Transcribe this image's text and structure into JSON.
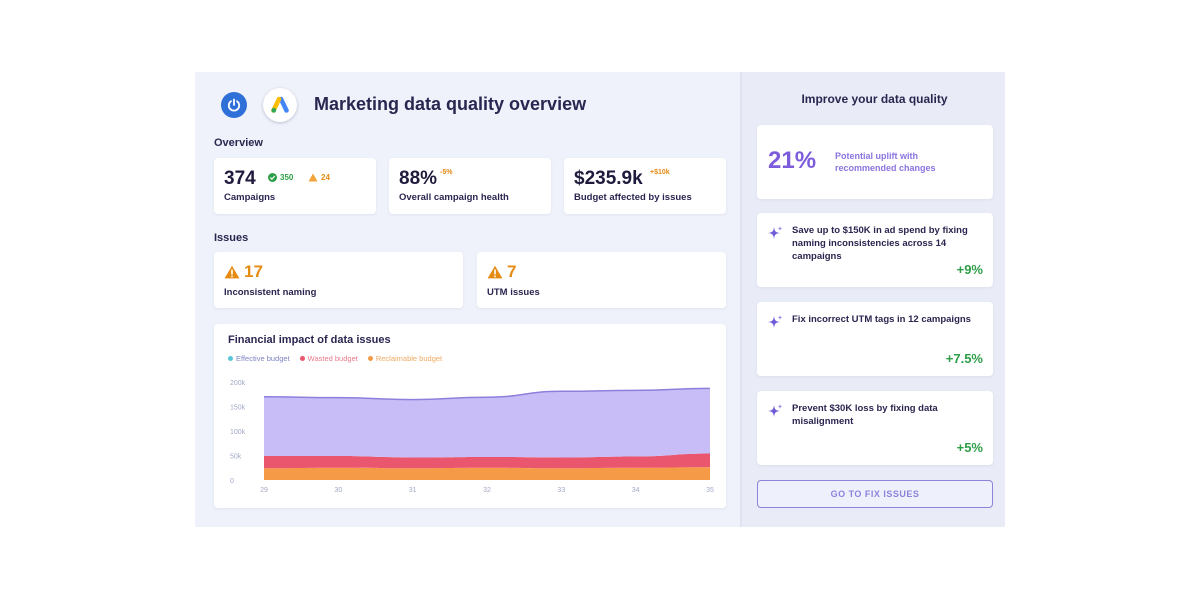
{
  "header": {
    "title": "Marketing data quality overview",
    "app_icon": "power-icon",
    "ads_icon": "google-ads-icon"
  },
  "overview": {
    "label": "Overview",
    "campaigns": {
      "value": "374",
      "ok_count": "350",
      "warn_count": "24",
      "label": "Campaigns"
    },
    "health": {
      "value": "88%",
      "delta": "-5%",
      "label": "Overall campaign health"
    },
    "budget": {
      "value": "$235.9k",
      "delta": "+$10k",
      "label": "Budget affected by issues"
    }
  },
  "issues": {
    "label": "Issues",
    "naming": {
      "value": "17",
      "label": "Inconsistent naming"
    },
    "utm": {
      "value": "7",
      "label": "UTM issues"
    }
  },
  "colors": {
    "accent": "#7c5cdb",
    "effective": "#c9bdf7",
    "wasted": "#e9566e",
    "reclaimable": "#f59a46",
    "positive": "#2e9e48",
    "warning": "#e58a12"
  },
  "chart_data": {
    "type": "area",
    "title": "Financial impact of data issues",
    "stacked": true,
    "x": [
      "29",
      "30",
      "31",
      "32",
      "33",
      "34",
      "35"
    ],
    "y_ticks": [
      "200k",
      "150k",
      "100k",
      "50k",
      "0"
    ],
    "ylim": [
      0,
      200000
    ],
    "grid": false,
    "legend_position": "top-left",
    "series": [
      {
        "name": "Reclaimable budget",
        "color": "#f59a46",
        "values": [
          24000,
          25000,
          24000,
          25000,
          24000,
          25000,
          26000
        ]
      },
      {
        "name": "Wasted budget",
        "color": "#e9566e",
        "values": [
          25000,
          24000,
          22000,
          22000,
          22000,
          23000,
          28000
        ]
      },
      {
        "name": "Effective budget",
        "color": "#c9bdf7",
        "values": [
          121000,
          119000,
          118000,
          122000,
          135000,
          135000,
          133000
        ]
      }
    ]
  },
  "sidebar": {
    "title": "Improve your data quality",
    "uplift": {
      "value": "21%",
      "text": "Potential uplift with recommended changes"
    },
    "recommendations": [
      {
        "text": "Save up to $150K in ad spend by fixing naming inconsistencies across 14 campaigns",
        "pct": "+9%",
        "icon": "sparkle-icon"
      },
      {
        "text": "Fix incorrect UTM tags in 12 campaigns",
        "pct": "+7.5%",
        "icon": "sparkle-icon"
      },
      {
        "text": "Prevent $30K loss by fixing data misalignment",
        "pct": "+5%",
        "icon": "sparkle-icon"
      }
    ],
    "cta": "GO TO FIX ISSUES"
  }
}
